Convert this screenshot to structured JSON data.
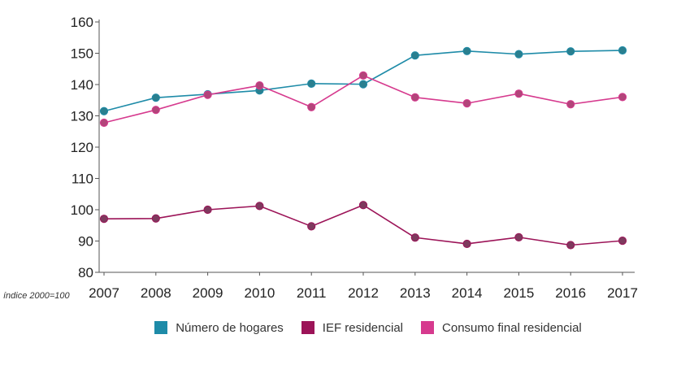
{
  "chart_data": {
    "type": "line",
    "title": "",
    "xlabel": "",
    "ylabel": "",
    "index_note": "índice 2000=100",
    "x": [
      "2007",
      "2008",
      "2009",
      "2010",
      "2011",
      "2012",
      "2013",
      "2014",
      "2015",
      "2016",
      "2017"
    ],
    "yticks": [
      "80",
      "90",
      "100",
      "110",
      "120",
      "130",
      "140",
      "150",
      "160"
    ],
    "ylim": [
      80,
      160
    ],
    "grid": false,
    "legend_position": "bottom",
    "series": [
      {
        "name": "Número de hogares",
        "color": "#1e8ba8",
        "marker": "#2a7f8f",
        "values": [
          131.5,
          135.8,
          136.9,
          138.1,
          140.3,
          140.1,
          149.3,
          150.7,
          149.7,
          150.6,
          150.9
        ]
      },
      {
        "name": "IEF residencial",
        "color": "#9c1458",
        "marker": "#7e3a5e",
        "values": [
          97.1,
          97.2,
          100.0,
          101.2,
          94.7,
          101.5,
          91.1,
          89.1,
          91.2,
          88.7,
          90.1
        ]
      },
      {
        "name": "Consumo final residencial",
        "color": "#d63a8e",
        "marker": "#b2457a",
        "values": [
          127.8,
          131.9,
          136.7,
          139.7,
          132.8,
          142.9,
          135.9,
          134.0,
          137.1,
          133.7,
          136.0
        ]
      }
    ]
  }
}
